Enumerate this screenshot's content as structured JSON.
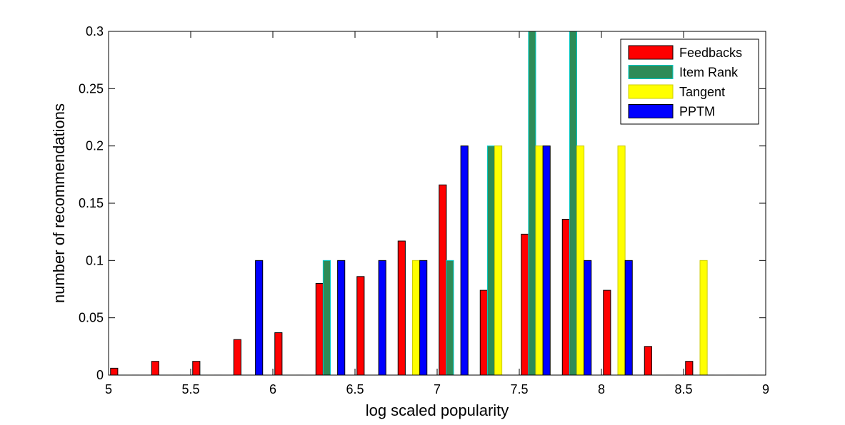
{
  "chart_data": {
    "type": "bar",
    "title": "",
    "xlabel": "log scaled popularity",
    "ylabel": "number of recommendations",
    "xlim": [
      5,
      9
    ],
    "ylim": [
      0,
      0.3
    ],
    "xticks": [
      5,
      5.5,
      6,
      6.5,
      7,
      7.5,
      8,
      8.5,
      9
    ],
    "xtick_labels": [
      "5",
      "5.5",
      "6",
      "6.5",
      "7",
      "7.5",
      "8",
      "8.5",
      "9"
    ],
    "yticks": [
      0,
      0.05,
      0.1,
      0.15,
      0.2,
      0.25,
      0.3
    ],
    "ytick_labels": [
      "0",
      "0.05",
      "0.1",
      "0.15",
      "0.2",
      "0.25",
      "0.3"
    ],
    "grid": false,
    "legend_position": "top-right",
    "bin_centers": [
      5.1,
      5.35,
      5.6,
      5.85,
      6.1,
      6.35,
      6.6,
      6.85,
      7.1,
      7.35,
      7.6,
      7.85,
      8.1,
      8.35,
      8.6,
      8.85
    ],
    "series": [
      {
        "name": "Feedbacks",
        "color": "#ff0000",
        "border": "#000000",
        "values": [
          0.006,
          0.012,
          0.012,
          0.031,
          0.037,
          0.08,
          0.086,
          0.117,
          0.166,
          0.074,
          0.123,
          0.136,
          0.074,
          0.025,
          0.012,
          0
        ]
      },
      {
        "name": "Item Rank",
        "color": "#2e8b57",
        "border": "#00cccc",
        "values": [
          0,
          0,
          0,
          0,
          0,
          0.1,
          0,
          0,
          0.1,
          0.2,
          0.3,
          0.3,
          0,
          0,
          0,
          0
        ]
      },
      {
        "name": "Tangent",
        "color": "#ffff00",
        "border": "#cccc00",
        "values": [
          0,
          0,
          0,
          0,
          0,
          0,
          0,
          0.1,
          0,
          0.2,
          0.2,
          0.2,
          0.2,
          0,
          0.1,
          0
        ]
      },
      {
        "name": "PPTM",
        "color": "#0000ff",
        "border": "#000000",
        "values": [
          0,
          0,
          0,
          0.1,
          0,
          0.1,
          0.1,
          0.1,
          0.2,
          0,
          0.2,
          0.1,
          0.1,
          0,
          0,
          0
        ]
      }
    ]
  }
}
